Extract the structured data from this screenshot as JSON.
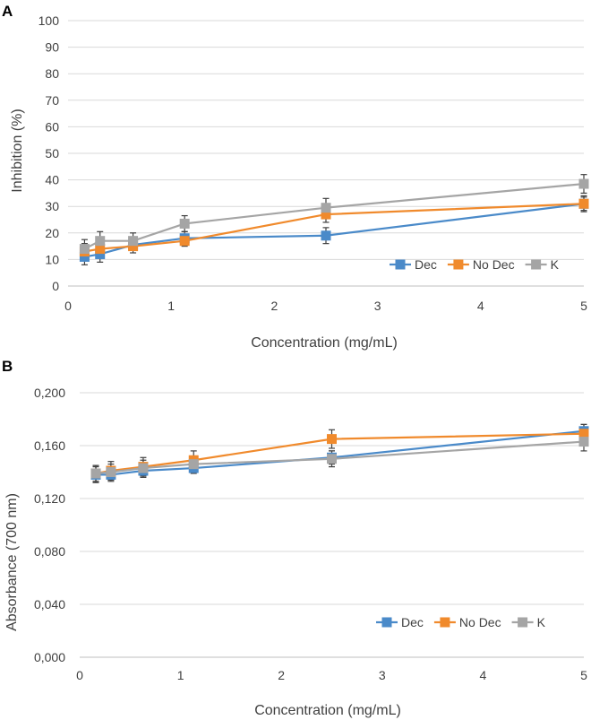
{
  "chart_data": [
    {
      "panel_label": "A",
      "type": "line",
      "title": "",
      "xlabel": "Concentration (mg/mL)",
      "ylabel": "Inhibition (%)",
      "xlim": [
        0,
        5
      ],
      "ylim": [
        0,
        100
      ],
      "x_ticks": [
        "0",
        "1",
        "2",
        "3",
        "4",
        "5"
      ],
      "y_ticks": [
        "0",
        "10",
        "20",
        "30",
        "40",
        "50",
        "60",
        "70",
        "80",
        "90",
        "100"
      ],
      "x": [
        0.16,
        0.31,
        0.63,
        1.13,
        2.5,
        5
      ],
      "legend": {
        "placement": "bottom-right",
        "layout": "horizontal"
      },
      "series": [
        {
          "name": "Dec",
          "color": "#4a8ac9",
          "values": [
            11,
            12,
            15.5,
            18,
            19,
            31
          ],
          "errors": [
            3,
            3,
            2,
            2.5,
            3,
            2.5
          ]
        },
        {
          "name": "No Dec",
          "color": "#f08a2c",
          "values": [
            13,
            14,
            15,
            17,
            27,
            31
          ],
          "errors": [
            3,
            3,
            2.5,
            2,
            3,
            3
          ]
        },
        {
          "name": "K",
          "color": "#a5a5a5",
          "values": [
            14,
            17,
            17,
            23.5,
            29.5,
            38.5
          ],
          "errors": [
            3.5,
            3.5,
            3,
            3,
            3.5,
            3.5
          ]
        }
      ]
    },
    {
      "panel_label": "B",
      "type": "line",
      "title": "",
      "xlabel": "Concentration (mg/mL)",
      "ylabel": "Absorbance (700 nm)",
      "xlim": [
        0,
        5
      ],
      "ylim": [
        0,
        0.2
      ],
      "x_ticks": [
        "0",
        "1",
        "2",
        "3",
        "4",
        "5"
      ],
      "y_ticks": [
        "0,000",
        "0,040",
        "0,080",
        "0,120",
        "0,160",
        "0,200"
      ],
      "x": [
        0.16,
        0.31,
        0.63,
        1.13,
        2.5,
        5
      ],
      "legend": {
        "placement": "bottom-right",
        "layout": "horizontal"
      },
      "series": [
        {
          "name": "Dec",
          "color": "#4a8ac9",
          "values": [
            0.138,
            0.138,
            0.141,
            0.143,
            0.151,
            0.171
          ],
          "errors": [
            0.006,
            0.005,
            0.005,
            0.004,
            0.005,
            0.005
          ]
        },
        {
          "name": "No Dec",
          "color": "#f08a2c",
          "values": [
            0.139,
            0.141,
            0.144,
            0.149,
            0.165,
            0.169
          ],
          "errors": [
            0.006,
            0.007,
            0.007,
            0.007,
            0.007,
            0.007
          ]
        },
        {
          "name": "K",
          "color": "#a5a5a5",
          "values": [
            0.139,
            0.14,
            0.143,
            0.146,
            0.15,
            0.163
          ],
          "errors": [
            0.006,
            0.006,
            0.006,
            0.005,
            0.006,
            0.007
          ]
        }
      ]
    }
  ]
}
